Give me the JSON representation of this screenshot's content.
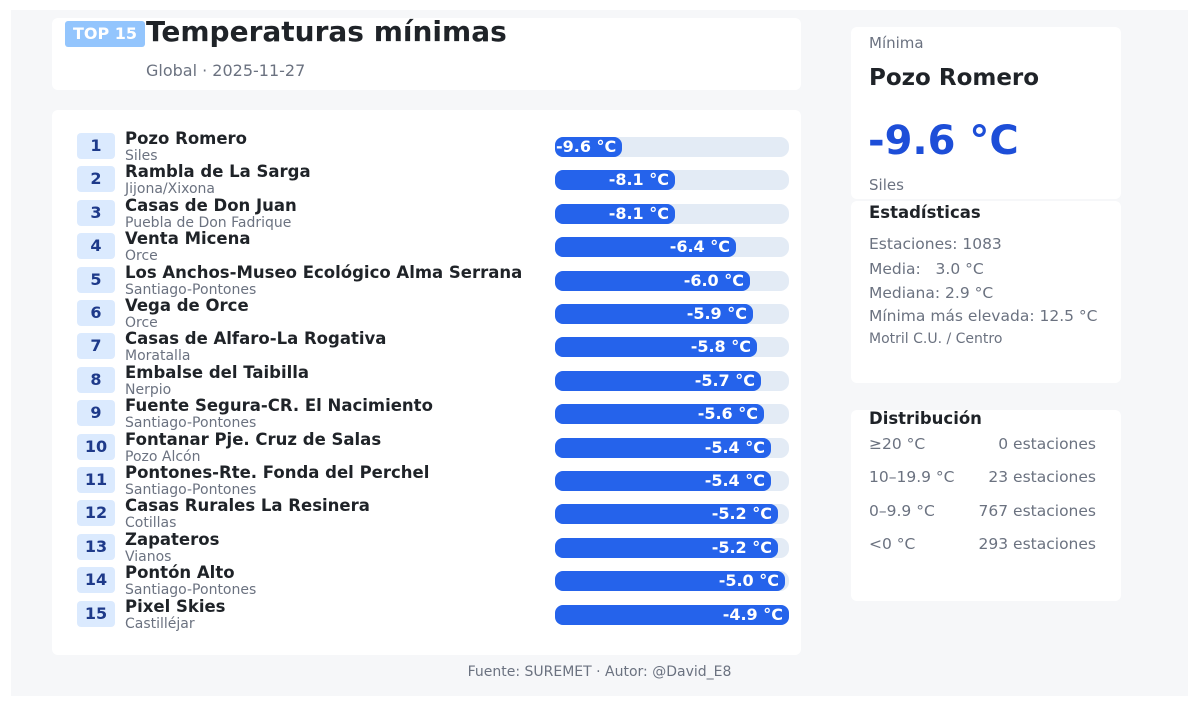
{
  "header": {
    "badge": "TOP 15",
    "title": "Temperaturas mínimas",
    "subtitle": "Global · 2025-11-27"
  },
  "chart_data": {
    "type": "bar",
    "orientation": "horizontal",
    "unit": "°C",
    "xlim": [
      -9.6,
      -4.9
    ],
    "items": [
      {
        "rank": "1",
        "station": "Pozo Romero",
        "location": "Siles",
        "value": -9.6,
        "label": "-9.6 °C"
      },
      {
        "rank": "2",
        "station": "Rambla de La Sarga",
        "location": "Jijona/Xixona",
        "value": -8.1,
        "label": "-8.1 °C"
      },
      {
        "rank": "3",
        "station": "Casas de Don Juan",
        "location": "Puebla de Don Fadrique",
        "value": -8.1,
        "label": "-8.1 °C"
      },
      {
        "rank": "4",
        "station": "Venta Micena",
        "location": "Orce",
        "value": -6.4,
        "label": "-6.4 °C"
      },
      {
        "rank": "5",
        "station": "Los Anchos-Museo Ecológico Alma Serrana",
        "location": "Santiago-Pontones",
        "value": -6.0,
        "label": "-6.0 °C"
      },
      {
        "rank": "6",
        "station": "Vega de Orce",
        "location": "Orce",
        "value": -5.9,
        "label": "-5.9 °C"
      },
      {
        "rank": "7",
        "station": "Casas de Alfaro-La Rogativa",
        "location": "Moratalla",
        "value": -5.8,
        "label": "-5.8 °C"
      },
      {
        "rank": "8",
        "station": "Embalse del Taibilla",
        "location": "Nerpio",
        "value": -5.7,
        "label": "-5.7 °C"
      },
      {
        "rank": "9",
        "station": "Fuente Segura-CR. El Nacimiento",
        "location": "Santiago-Pontones",
        "value": -5.6,
        "label": "-5.6 °C"
      },
      {
        "rank": "10",
        "station": "Fontanar Pje. Cruz de Salas",
        "location": "Pozo Alcón",
        "value": -5.4,
        "label": "-5.4 °C"
      },
      {
        "rank": "11",
        "station": "Pontones-Rte. Fonda del Perchel",
        "location": "Santiago-Pontones",
        "value": -5.4,
        "label": "-5.4 °C"
      },
      {
        "rank": "12",
        "station": "Casas Rurales La Resinera",
        "location": "Cotillas",
        "value": -5.2,
        "label": "-5.2 °C"
      },
      {
        "rank": "13",
        "station": "Zapateros",
        "location": "Vianos",
        "value": -5.2,
        "label": "-5.2 °C"
      },
      {
        "rank": "14",
        "station": "Pontón Alto",
        "location": "Santiago-Pontones",
        "value": -5.0,
        "label": "-5.0 °C"
      },
      {
        "rank": "15",
        "station": "Pixel Skies",
        "location": "Castilléjar",
        "value": -4.9,
        "label": "-4.9 °C"
      }
    ]
  },
  "summary": {
    "label": "Mínima",
    "station": "Pozo Romero",
    "value": "-9.6 °C",
    "location": "Siles"
  },
  "stats": {
    "title": "Estadísticas",
    "stations": "Estaciones: 1083",
    "mean": "Media:   3.0 °C",
    "median": "Mediana: 2.9 °C",
    "highest_min": "Mínima más elevada: 12.5 °C",
    "highest_min_station": "Motril C.U. / Centro"
  },
  "distribution": {
    "title": "Distribución",
    "rows": [
      {
        "range": "≥20 °C",
        "count": "0 estaciones"
      },
      {
        "range": "10–19.9 °C",
        "count": "23 estaciones"
      },
      {
        "range": "0–9.9 °C",
        "count": "767 estaciones"
      },
      {
        "range": "<0 °C",
        "count": "293 estaciones"
      }
    ]
  },
  "footer": "Fuente: SUREMET · Autor: @David_E8",
  "colors": {
    "bar": "#2563eb",
    "track": "#e3ebf5",
    "accent": "#1d4ed8",
    "badge": "#93c5fd"
  }
}
